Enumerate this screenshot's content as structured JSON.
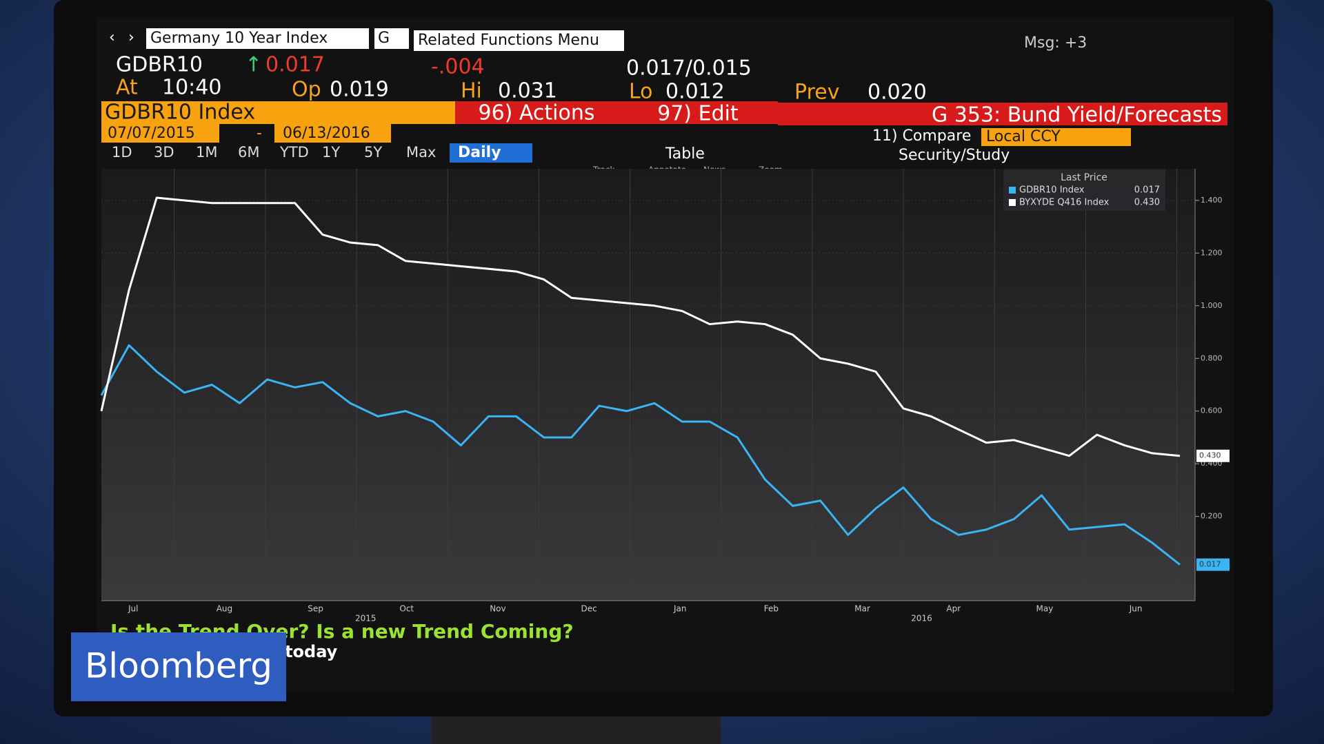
{
  "toolbar": {
    "security": "Germany 10 Year Index",
    "source": "G",
    "menu": "Related Functions Menu",
    "messages": "Msg: +3"
  },
  "quote": {
    "ticker": "GDBR10",
    "last": "0.017",
    "change": "-.004",
    "bid_ask": "0.017/0.015",
    "time_label": "At",
    "time": "10:40",
    "open_label": "Op",
    "open": "0.019",
    "high_label": "Hi",
    "high": "0.031",
    "low_label": "Lo",
    "low": "0.012",
    "prev_label": "Prev",
    "prev": "0.020"
  },
  "function_bar": {
    "security": "GDBR10 Index",
    "actions": "96) Actions",
    "edit": "97) Edit",
    "page": "G 353: Bund Yield/Forecasts"
  },
  "range": {
    "start": "07/07/2015",
    "separator": "-",
    "end": "06/13/2016",
    "compare": "11) Compare",
    "currency": "Local CCY"
  },
  "periods": [
    "1D",
    "3D",
    "1M",
    "6M",
    "YTD",
    "1Y",
    "5Y",
    "Max"
  ],
  "toolbar2": {
    "frequency": "Daily",
    "table": "Table",
    "study": "Security/Study"
  },
  "tools": [
    "Track",
    "Annotate",
    "News",
    "Zoom"
  ],
  "chart_data": {
    "type": "line",
    "legend_title": "Last Price",
    "x_labels": [
      "Jul",
      "Aug",
      "Sep",
      "Oct",
      "Nov",
      "Dec",
      "Jan",
      "Feb",
      "Mar",
      "Apr",
      "May",
      "Jun"
    ],
    "year_labels": [
      "2015",
      "2016"
    ],
    "series": [
      {
        "name": "GDBR10 Index",
        "color": "#3ab4f2",
        "last_label": "0.017",
        "values": [
          0.66,
          0.85,
          0.75,
          0.67,
          0.7,
          0.63,
          0.72,
          0.69,
          0.71,
          0.63,
          0.58,
          0.6,
          0.56,
          0.47,
          0.58,
          0.58,
          0.5,
          0.5,
          0.62,
          0.6,
          0.63,
          0.56,
          0.56,
          0.5,
          0.34,
          0.24,
          0.26,
          0.13,
          0.23,
          0.31,
          0.19,
          0.13,
          0.15,
          0.19,
          0.28,
          0.15,
          0.16,
          0.17,
          0.1,
          0.017
        ]
      },
      {
        "name": "BYXYDE Q416 Index",
        "color": "#ffffff",
        "last_label": "0.430",
        "values": [
          0.6,
          1.06,
          1.41,
          1.4,
          1.39,
          1.39,
          1.39,
          1.39,
          1.27,
          1.24,
          1.23,
          1.17,
          1.16,
          1.15,
          1.14,
          1.13,
          1.1,
          1.03,
          1.02,
          1.01,
          1.0,
          0.98,
          0.93,
          0.94,
          0.93,
          0.89,
          0.8,
          0.78,
          0.75,
          0.61,
          0.58,
          0.53,
          0.48,
          0.49,
          0.46,
          0.43,
          0.51,
          0.47,
          0.44,
          0.43
        ]
      }
    ],
    "ylim": [
      -0.12,
      1.52
    ],
    "yticks": [
      {
        "value": 0.2,
        "label": "0.200"
      },
      {
        "value": 0.4,
        "label": "0.400"
      },
      {
        "value": 0.6,
        "label": "0.600"
      },
      {
        "value": 0.8,
        "label": "0.800"
      },
      {
        "value": 1.0,
        "label": "1.000"
      },
      {
        "value": 1.2,
        "label": "1.200"
      },
      {
        "value": 1.4,
        "label": "1.400"
      }
    ],
    "grid": true
  },
  "banner": {
    "line1": "Is the Trend Over? Is a new Trend Coming?",
    "line2": "st's Custom Study today"
  },
  "logo": "Bloomberg"
}
